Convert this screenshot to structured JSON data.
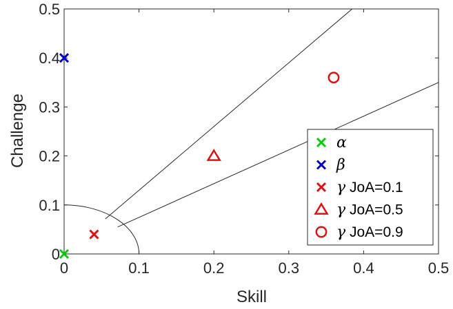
{
  "chart_data": {
    "type": "scatter",
    "title": "",
    "xlabel": "Skill",
    "ylabel": "Challenge",
    "xlim": [
      0,
      0.5
    ],
    "ylim": [
      0,
      0.5
    ],
    "xticks": [
      "0",
      "0.1",
      "0.2",
      "0.3",
      "0.4",
      "0.5"
    ],
    "yticks": [
      "0",
      "0.1",
      "0.2",
      "0.3",
      "0.4",
      "0.5"
    ],
    "grid": false,
    "legend_position": "bottom-right",
    "series": [
      {
        "name": "α",
        "label_greek": "α",
        "label_suffix": "",
        "marker": "x",
        "color": "#00cc00",
        "points": [
          [
            0,
            0
          ]
        ]
      },
      {
        "name": "β",
        "label_greek": "β",
        "label_suffix": "",
        "marker": "x",
        "color": "#0000cc",
        "points": [
          [
            0,
            0.4
          ]
        ]
      },
      {
        "name": "γ JoA=0.1",
        "label_greek": "γ",
        "label_suffix": "JoA=0.1",
        "marker": "x",
        "color": "#dd1111",
        "points": [
          [
            0.04,
            0.04
          ]
        ]
      },
      {
        "name": "γ JoA=0.5",
        "label_greek": "γ",
        "label_suffix": "JoA=0.5",
        "marker": "triangle",
        "color": "#dd1111",
        "points": [
          [
            0.2,
            0.2
          ]
        ]
      },
      {
        "name": "γ JoA=0.9",
        "label_greek": "γ",
        "label_suffix": "JoA=0.9",
        "marker": "circle",
        "color": "#dd1111",
        "points": [
          [
            0.36,
            0.36
          ]
        ]
      }
    ],
    "reference_lines": [
      {
        "from": [
          0.055,
          0.0715
        ],
        "to": [
          0.3846,
          0.5
        ]
      },
      {
        "from": [
          0.0715,
          0.055
        ],
        "to": [
          0.5,
          0.35
        ]
      }
    ],
    "reference_arc": {
      "center": [
        0,
        0
      ],
      "radius": 0.1
    }
  }
}
